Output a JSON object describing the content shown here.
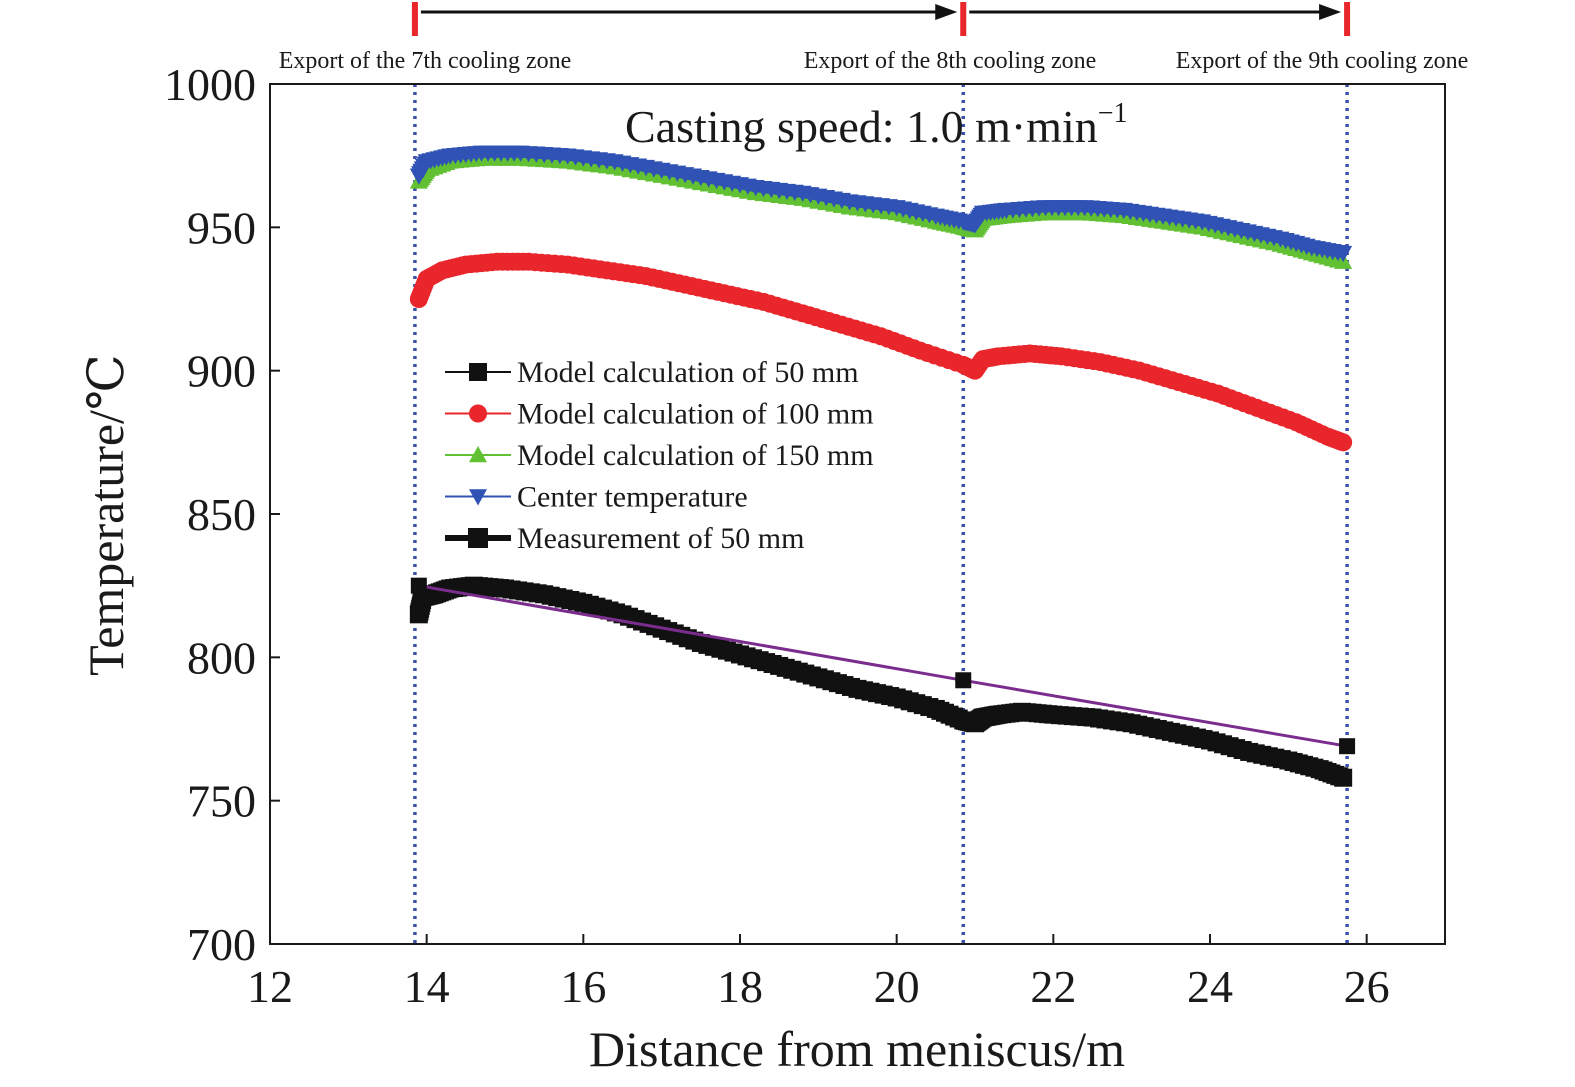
{
  "chart_data": {
    "type": "line",
    "xlabel": "Distance from meniscus/m",
    "ylabel": "Temperature/℃",
    "xlim": [
      12,
      27
    ],
    "ylim": [
      700,
      1000
    ],
    "xticks": [
      12,
      14,
      16,
      18,
      20,
      22,
      24,
      26
    ],
    "yticks": [
      700,
      750,
      800,
      850,
      900,
      950,
      1000
    ],
    "grid": false,
    "legend_position": "center-left",
    "annotation": {
      "text": "Casting speed: 1.0 m·min",
      "superscript": "−1"
    },
    "zones": [
      {
        "label": "Export of the 7th cooling zone",
        "x": 13.85
      },
      {
        "label": "Export of the 8th cooling zone",
        "x": 20.85
      },
      {
        "label": "Export of the 9th cooling zone",
        "x": 25.75
      }
    ],
    "series": [
      {
        "name": "Model calculation of 50 mm",
        "marker": "square",
        "color": "#111111",
        "points": [
          [
            13.9,
            815
          ],
          [
            13.95,
            821
          ],
          [
            14.1,
            822
          ],
          [
            14.3,
            824
          ],
          [
            14.6,
            825
          ],
          [
            15.0,
            824
          ],
          [
            15.5,
            822
          ],
          [
            16.0,
            819
          ],
          [
            16.5,
            815
          ],
          [
            17.0,
            810
          ],
          [
            17.5,
            805
          ],
          [
            18.0,
            801
          ],
          [
            18.5,
            797
          ],
          [
            19.0,
            793
          ],
          [
            19.5,
            789
          ],
          [
            20.0,
            786
          ],
          [
            20.5,
            782
          ],
          [
            20.85,
            778
          ],
          [
            21.0,
            777
          ],
          [
            21.1,
            779
          ],
          [
            21.3,
            780
          ],
          [
            21.6,
            781
          ],
          [
            22.0,
            780
          ],
          [
            22.5,
            779
          ],
          [
            23.0,
            777
          ],
          [
            23.5,
            774
          ],
          [
            24.0,
            771
          ],
          [
            24.5,
            767
          ],
          [
            25.0,
            764
          ],
          [
            25.4,
            761
          ],
          [
            25.7,
            758
          ]
        ]
      },
      {
        "name": "Model calculation of 100 mm",
        "marker": "circle",
        "color": "#e8262b",
        "points": [
          [
            13.9,
            925
          ],
          [
            14.0,
            932
          ],
          [
            14.2,
            935
          ],
          [
            14.5,
            937
          ],
          [
            14.9,
            938
          ],
          [
            15.3,
            938
          ],
          [
            15.8,
            937
          ],
          [
            16.3,
            935
          ],
          [
            16.8,
            933
          ],
          [
            17.3,
            930
          ],
          [
            17.8,
            927
          ],
          [
            18.3,
            924
          ],
          [
            18.8,
            920
          ],
          [
            19.3,
            916
          ],
          [
            19.8,
            912
          ],
          [
            20.3,
            907
          ],
          [
            20.85,
            902
          ],
          [
            21.0,
            900
          ],
          [
            21.1,
            904
          ],
          [
            21.3,
            905
          ],
          [
            21.7,
            906
          ],
          [
            22.1,
            905
          ],
          [
            22.6,
            903
          ],
          [
            23.1,
            900
          ],
          [
            23.6,
            896
          ],
          [
            24.1,
            892
          ],
          [
            24.6,
            887
          ],
          [
            25.1,
            882
          ],
          [
            25.5,
            877
          ],
          [
            25.7,
            875
          ]
        ]
      },
      {
        "name": "Model calculation of 150 mm",
        "marker": "triangle-up",
        "color": "#62c033",
        "points": [
          [
            13.9,
            966
          ],
          [
            14.0,
            970
          ],
          [
            14.3,
            973
          ],
          [
            14.7,
            974
          ],
          [
            15.2,
            974
          ],
          [
            15.8,
            973
          ],
          [
            16.4,
            971
          ],
          [
            17.0,
            968
          ],
          [
            17.6,
            965
          ],
          [
            18.2,
            962
          ],
          [
            18.8,
            960
          ],
          [
            19.4,
            957
          ],
          [
            20.0,
            955
          ],
          [
            20.5,
            952
          ],
          [
            20.85,
            950
          ],
          [
            21.0,
            949
          ],
          [
            21.1,
            953
          ],
          [
            21.4,
            954
          ],
          [
            21.9,
            955
          ],
          [
            22.4,
            955
          ],
          [
            22.9,
            954
          ],
          [
            23.4,
            952
          ],
          [
            23.9,
            950
          ],
          [
            24.4,
            947
          ],
          [
            24.9,
            944
          ],
          [
            25.3,
            941
          ],
          [
            25.7,
            938
          ]
        ]
      },
      {
        "name": "Center temperature",
        "marker": "triangle-down",
        "color": "#2f52b4",
        "points": [
          [
            13.9,
            968
          ],
          [
            14.0,
            973
          ],
          [
            14.3,
            975
          ],
          [
            14.7,
            976
          ],
          [
            15.2,
            976
          ],
          [
            15.8,
            975
          ],
          [
            16.4,
            973
          ],
          [
            17.0,
            970
          ],
          [
            17.6,
            967
          ],
          [
            18.2,
            964
          ],
          [
            18.8,
            962
          ],
          [
            19.4,
            959
          ],
          [
            20.0,
            957
          ],
          [
            20.5,
            954
          ],
          [
            20.85,
            952
          ],
          [
            21.0,
            951
          ],
          [
            21.1,
            955
          ],
          [
            21.4,
            956
          ],
          [
            21.9,
            957
          ],
          [
            22.4,
            957
          ],
          [
            22.9,
            956
          ],
          [
            23.4,
            954
          ],
          [
            23.9,
            952
          ],
          [
            24.4,
            949
          ],
          [
            24.9,
            946
          ],
          [
            25.3,
            943
          ],
          [
            25.7,
            941
          ]
        ]
      },
      {
        "name": "Measurement of 50 mm",
        "marker": "square",
        "color": "#7b2d8e",
        "marker_color": "#111111",
        "points": [
          [
            13.9,
            825
          ],
          [
            20.85,
            792
          ],
          [
            25.75,
            769
          ]
        ]
      }
    ]
  }
}
